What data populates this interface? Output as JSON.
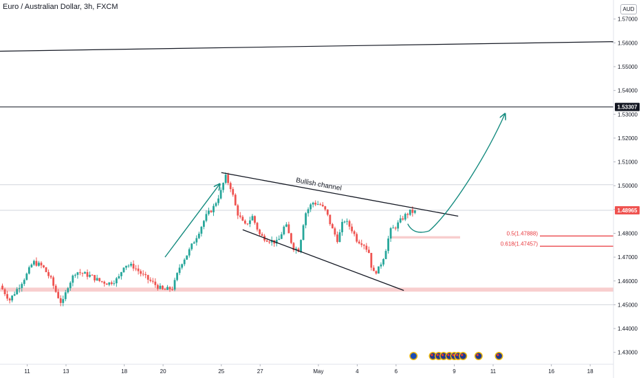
{
  "header": {
    "title": "Euro / Australian Dollar, 3h, FXCM",
    "currency": "AUD"
  },
  "colors": {
    "up": "#26a69a",
    "down": "#ef5350",
    "zone": "#f7c5c5",
    "arrow": "#138a7e",
    "fib": "#e8383d"
  },
  "chart_data": {
    "type": "candlestick",
    "title": "Euro / Australian Dollar, 3h, FXCM",
    "ylim": [
      1.425,
      1.578
    ],
    "y_ticks": [
      1.43,
      1.44,
      1.45,
      1.46,
      1.47,
      1.48,
      1.49,
      1.5,
      1.51,
      1.52,
      1.53,
      1.54,
      1.55,
      1.56,
      1.57
    ],
    "y_tick_labels": [
      "1.43000",
      "1.44000",
      "1.45000",
      "1.46000",
      "1.47000",
      "1.48000",
      "1.49000",
      "1.50000",
      "1.51000",
      "1.52000",
      "1.53000",
      "1.54000",
      "1.55000",
      "1.56000",
      "1.57000"
    ],
    "x_ticks": [
      {
        "label": "11",
        "t": 0
      },
      {
        "label": "13",
        "t": 2
      },
      {
        "label": "18",
        "t": 5
      },
      {
        "label": "20",
        "t": 7
      },
      {
        "label": "25",
        "t": 10
      },
      {
        "label": "27",
        "t": 12
      },
      {
        "label": "May",
        "t": 15
      },
      {
        "label": "4",
        "t": 17
      },
      {
        "label": "6",
        "t": 19
      },
      {
        "label": "9",
        "t": 22
      },
      {
        "label": "11",
        "t": 24
      },
      {
        "label": "16",
        "t": 27
      },
      {
        "label": "18",
        "t": 29
      }
    ],
    "x_range": [
      -1.4,
      30.2
    ],
    "keypoints": [
      [
        -1.4,
        1.458
      ],
      [
        -0.9,
        1.452
      ],
      [
        -0.4,
        1.458
      ],
      [
        0.0,
        1.463
      ],
      [
        0.3,
        1.468
      ],
      [
        0.8,
        1.466
      ],
      [
        1.2,
        1.461
      ],
      [
        1.5,
        1.455
      ],
      [
        1.8,
        1.45
      ],
      [
        2.1,
        1.458
      ],
      [
        2.5,
        1.464
      ],
      [
        2.9,
        1.463
      ],
      [
        3.3,
        1.462
      ],
      [
        3.7,
        1.46
      ],
      [
        4.2,
        1.459
      ],
      [
        4.7,
        1.461
      ],
      [
        5.0,
        1.467
      ],
      [
        5.5,
        1.466
      ],
      [
        6.0,
        1.462
      ],
      [
        6.5,
        1.459
      ],
      [
        7.0,
        1.456
      ],
      [
        7.5,
        1.457
      ],
      [
        7.9,
        1.467
      ],
      [
        8.3,
        1.472
      ],
      [
        8.8,
        1.48
      ],
      [
        9.2,
        1.487
      ],
      [
        9.6,
        1.491
      ],
      [
        10.0,
        1.498
      ],
      [
        10.2,
        1.504
      ],
      [
        10.5,
        1.499
      ],
      [
        10.8,
        1.489
      ],
      [
        11.2,
        1.483
      ],
      [
        11.6,
        1.487
      ],
      [
        12.0,
        1.479
      ],
      [
        12.5,
        1.477
      ],
      [
        12.9,
        1.476
      ],
      [
        13.3,
        1.484
      ],
      [
        13.7,
        1.474
      ],
      [
        14.0,
        1.473
      ],
      [
        14.3,
        1.488
      ],
      [
        14.7,
        1.493
      ],
      [
        15.1,
        1.492
      ],
      [
        15.4,
        1.489
      ],
      [
        15.7,
        1.482
      ],
      [
        16.0,
        1.477
      ],
      [
        16.3,
        1.486
      ],
      [
        16.7,
        1.482
      ],
      [
        17.0,
        1.477
      ],
      [
        17.3,
        1.476
      ],
      [
        17.6,
        1.472
      ],
      [
        17.8,
        1.463
      ],
      [
        18.1,
        1.465
      ],
      [
        18.4,
        1.471
      ],
      [
        18.7,
        1.481
      ],
      [
        19.0,
        1.483
      ],
      [
        19.4,
        1.487
      ],
      [
        19.7,
        1.489
      ],
      [
        20.0,
        1.489
      ]
    ],
    "last_price": "1.48965",
    "horizontal_lines": [
      {
        "price": 1.53307,
        "label": "1.53307"
      }
    ],
    "trendline": {
      "from": [
        -1.4,
        1.5565
      ],
      "to": [
        30.2,
        1.5605
      ]
    },
    "support_zone": {
      "from": 1.4555,
      "to": 1.4572
    },
    "retracement_zone": {
      "t_from": 18.7,
      "t_to": 22.3,
      "from": 1.4778,
      "to": 1.4788
    },
    "channel": {
      "upper": {
        "from": [
          10.0,
          1.5055
        ],
        "to": [
          22.2,
          1.4872
        ]
      },
      "lower": {
        "from": [
          11.1,
          1.4815
        ],
        "to": [
          19.4,
          1.456
        ]
      },
      "label": "Bullish channel"
    },
    "fib_levels": [
      {
        "label": "0.5(1.47888)",
        "price": 1.47888
      },
      {
        "label": "0.618(1.47457)",
        "price": 1.47457
      }
    ],
    "projection_arrows": [
      {
        "from": [
          7.1,
          1.47
        ],
        "to": [
          9.9,
          1.5005
        ]
      },
      {
        "path": [
          [
            19.6,
            1.484
          ],
          [
            19.9,
            1.479
          ],
          [
            20.7,
            1.481
          ],
          [
            21.7,
            1.488
          ],
          [
            23.5,
            1.51
          ],
          [
            24.6,
            1.53
          ]
        ]
      }
    ],
    "event_markers": [
      {
        "t": 19.9,
        "flag": "EU"
      },
      {
        "t": 20.9,
        "flag": "AU"
      },
      {
        "t": 21.2,
        "flag": "AU"
      },
      {
        "t": 21.45,
        "flag": "AU"
      },
      {
        "t": 21.75,
        "flag": "AU"
      },
      {
        "t": 22.0,
        "flag": "AU"
      },
      {
        "t": 22.2,
        "flag": "AU"
      },
      {
        "t": 22.45,
        "flag": "AU"
      },
      {
        "t": 23.25,
        "flag": "AU"
      },
      {
        "t": 24.3,
        "flag": "AU"
      }
    ]
  }
}
